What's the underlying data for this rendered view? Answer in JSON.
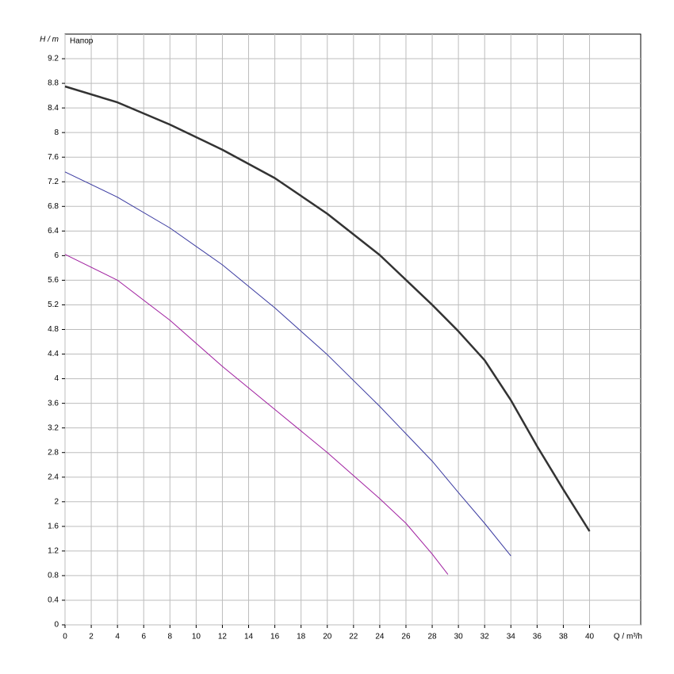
{
  "chart_data": {
    "type": "line",
    "title": "Напор",
    "x_label": "Q / m³/h",
    "y_label": "H / m",
    "xlim": [
      0,
      43.9
    ],
    "ylim": [
      0,
      9.6
    ],
    "xticks": [
      0,
      2,
      4,
      6,
      8,
      10,
      12,
      14,
      16,
      18,
      20,
      22,
      24,
      26,
      28,
      30,
      32,
      34,
      36,
      38,
      40
    ],
    "yticks": [
      0,
      0.4,
      0.8,
      1.2,
      1.6,
      2,
      2.4,
      2.8,
      3.2,
      3.6,
      4,
      4.4,
      4.8,
      5.2,
      5.6,
      6,
      6.4,
      6.8,
      7.2,
      7.6,
      8,
      8.4,
      8.8,
      9.2
    ],
    "grid": true,
    "series": [
      {
        "color": "#333333",
        "width": 2.5,
        "x": [
          0,
          4,
          8,
          12,
          16,
          20,
          24,
          28,
          30,
          32,
          34,
          36,
          38,
          40
        ],
        "values": [
          8.75,
          8.49,
          8.13,
          7.72,
          7.26,
          6.68,
          6.01,
          5.2,
          4.77,
          4.3,
          3.65,
          2.9,
          2.2,
          1.52
        ]
      },
      {
        "color": "#3a3aa0",
        "width": 1,
        "x": [
          0,
          4,
          8,
          12,
          16,
          20,
          24,
          28,
          30,
          32,
          34
        ],
        "values": [
          7.36,
          6.95,
          6.45,
          5.85,
          5.15,
          4.39,
          3.55,
          2.66,
          2.15,
          1.65,
          1.12
        ]
      },
      {
        "color": "#a020a0",
        "width": 1,
        "x": [
          0,
          4,
          8,
          12,
          16,
          20,
          24,
          26,
          28,
          29.2
        ],
        "values": [
          6.02,
          5.6,
          4.95,
          4.2,
          3.5,
          2.8,
          2.05,
          1.65,
          1.15,
          0.82
        ]
      }
    ]
  }
}
